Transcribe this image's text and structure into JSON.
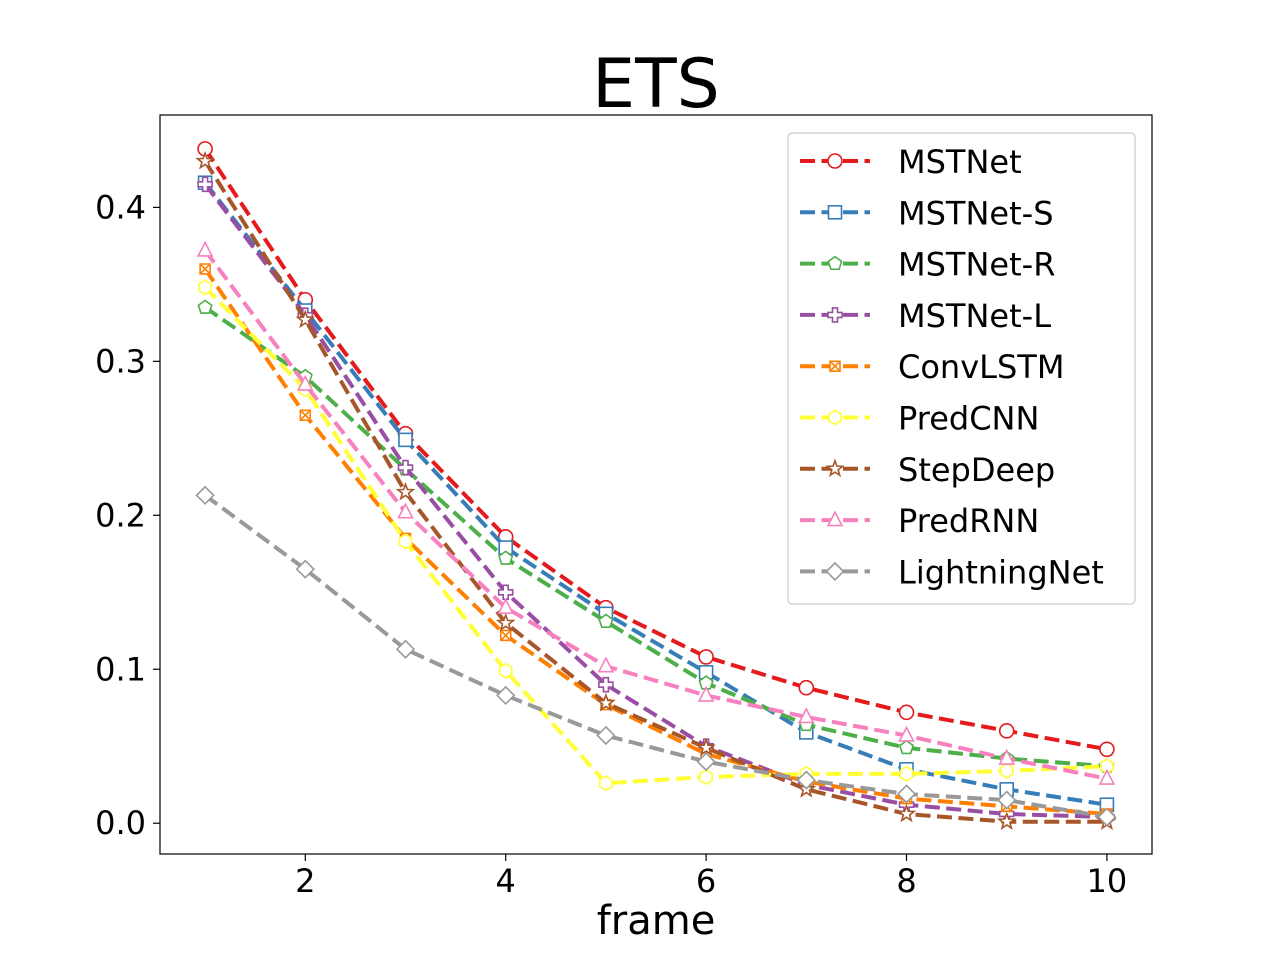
{
  "chart_data": {
    "type": "line",
    "title": "ETS",
    "xlabel": "frame",
    "ylabel": "",
    "xlim": [
      0.55,
      10.45
    ],
    "ylim": [
      -0.02,
      0.46
    ],
    "xticks": [
      2,
      4,
      6,
      8,
      10
    ],
    "yticks": [
      0.0,
      0.1,
      0.2,
      0.3,
      0.4
    ],
    "xtick_labels": [
      "2",
      "4",
      "6",
      "8",
      "10"
    ],
    "ytick_labels": [
      "0.0",
      "0.1",
      "0.2",
      "0.3",
      "0.4"
    ],
    "grid": false,
    "legend_position": "top-right",
    "x": [
      1,
      2,
      3,
      4,
      5,
      6,
      7,
      8,
      9,
      10
    ],
    "series": [
      {
        "name": "MSTNet",
        "color": "#e41a1c",
        "marker": "circle",
        "values": [
          0.438,
          0.34,
          0.253,
          0.186,
          0.14,
          0.108,
          0.088,
          0.072,
          0.06,
          0.048
        ]
      },
      {
        "name": "MSTNet-S",
        "color": "#377eb8",
        "marker": "square",
        "values": [
          0.416,
          0.333,
          0.249,
          0.179,
          0.136,
          0.098,
          0.059,
          0.035,
          0.022,
          0.012
        ]
      },
      {
        "name": "MSTNet-R",
        "color": "#4daf4a",
        "marker": "pentagon",
        "values": [
          0.335,
          0.29,
          0.23,
          0.172,
          0.131,
          0.091,
          0.064,
          0.049,
          0.042,
          0.037
        ]
      },
      {
        "name": "MSTNet-L",
        "color": "#984ea3",
        "marker": "plus",
        "values": [
          0.415,
          0.33,
          0.231,
          0.15,
          0.09,
          0.05,
          0.025,
          0.012,
          0.006,
          0.004
        ]
      },
      {
        "name": "ConvLSTM",
        "color": "#ff7f00",
        "marker": "x-square",
        "values": [
          0.36,
          0.265,
          0.185,
          0.122,
          0.077,
          0.045,
          0.027,
          0.016,
          0.011,
          0.006
        ]
      },
      {
        "name": "PredCNN",
        "color": "#ffff33",
        "marker": "hexagon",
        "values": [
          0.348,
          0.282,
          0.183,
          0.099,
          0.026,
          0.03,
          0.032,
          0.032,
          0.034,
          0.037
        ]
      },
      {
        "name": "StepDeep",
        "color": "#a65628",
        "marker": "star",
        "values": [
          0.43,
          0.327,
          0.215,
          0.13,
          0.078,
          0.049,
          0.022,
          0.006,
          0.001,
          0.001
        ]
      },
      {
        "name": "PredRNN",
        "color": "#f781bf",
        "marker": "triangle",
        "values": [
          0.372,
          0.285,
          0.202,
          0.14,
          0.102,
          0.083,
          0.069,
          0.057,
          0.042,
          0.029
        ]
      },
      {
        "name": "LightningNet",
        "color": "#999999",
        "marker": "diamond",
        "values": [
          0.213,
          0.165,
          0.113,
          0.083,
          0.057,
          0.04,
          0.028,
          0.019,
          0.015,
          0.004
        ]
      }
    ]
  }
}
